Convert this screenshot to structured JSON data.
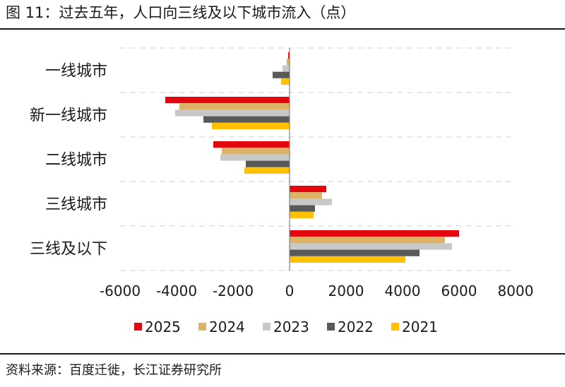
{
  "header": {
    "title": "图 11：过去五年，人口向三线及以下城市流入（点）"
  },
  "footer": {
    "source": "资料来源：百度迁徙，长江证券研究所"
  },
  "colors": {
    "2025": "#e3070f",
    "2024": "#dcb265",
    "2023": "#c8c8c8",
    "2022": "#595959",
    "2021": "#ffc000"
  },
  "chart_data": {
    "type": "bar",
    "orientation": "horizontal",
    "categories": [
      "一线城市",
      "新一线城市",
      "二线城市",
      "三线城市",
      "三线及以下"
    ],
    "series": [
      {
        "name": "2025",
        "values": [
          -50,
          -4400,
          -2700,
          1300,
          6000
        ]
      },
      {
        "name": "2024",
        "values": [
          -100,
          -3900,
          -2400,
          1150,
          5500
        ]
      },
      {
        "name": "2023",
        "values": [
          -250,
          -4050,
          -2450,
          1500,
          5750
        ]
      },
      {
        "name": "2022",
        "values": [
          -600,
          -3050,
          -1550,
          900,
          4600
        ]
      },
      {
        "name": "2021",
        "values": [
          -300,
          -2750,
          -1600,
          850,
          4100
        ]
      }
    ],
    "xlim": [
      -6000,
      8000
    ],
    "xticks": [
      -6000,
      -4000,
      -2000,
      0,
      2000,
      4000,
      6000,
      8000
    ],
    "grid": true,
    "legend_position": "bottom"
  }
}
